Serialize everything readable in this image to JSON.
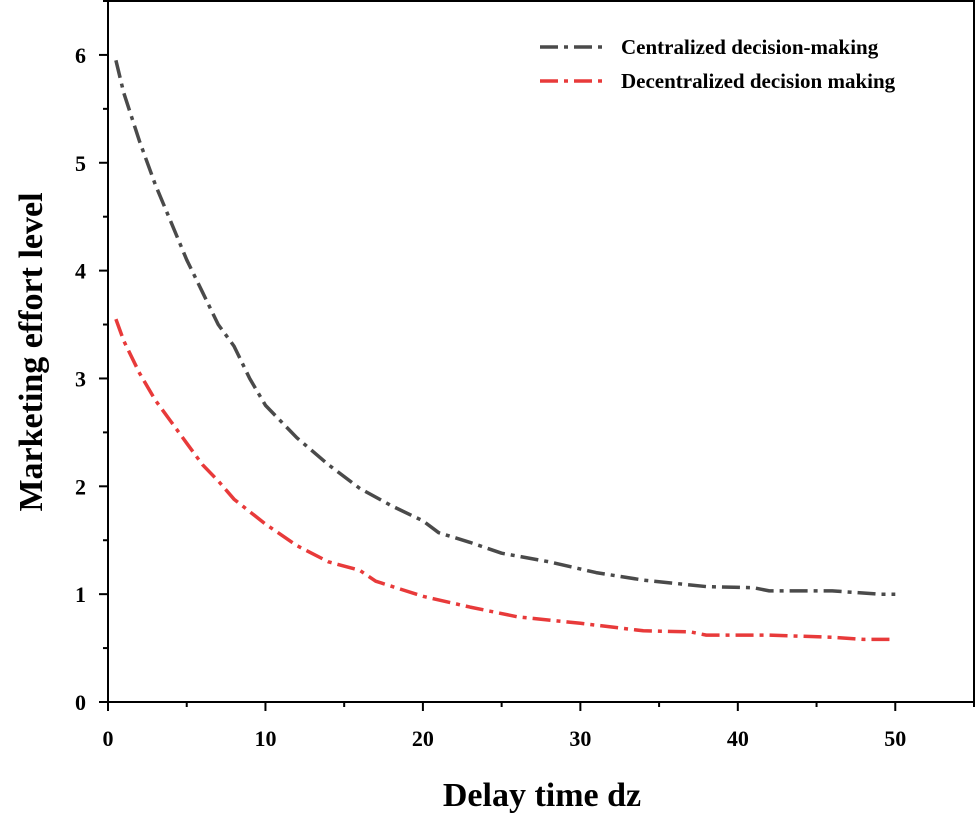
{
  "chart_data": {
    "type": "line",
    "xlabel": "Delay time dz",
    "ylabel": "Marketing effort level",
    "xlim": [
      0,
      55
    ],
    "ylim": [
      0,
      6.5
    ],
    "xticks": [
      0,
      10,
      20,
      30,
      40,
      50
    ],
    "xtick_labels": [
      "0",
      "10",
      "20",
      "30",
      "40",
      "50"
    ],
    "yticks": [
      0,
      1,
      2,
      3,
      4,
      5,
      6
    ],
    "ytick_labels": [
      "0",
      "1",
      "2",
      "3",
      "4",
      "5",
      "6"
    ],
    "grid": false,
    "legend": "top-right",
    "series": [
      {
        "name": "Centralized decision-making",
        "color": "#4a4a4a",
        "x": [
          0.5,
          1,
          2,
          3,
          4,
          5,
          6,
          7,
          8,
          9,
          10,
          12,
          14,
          16,
          18,
          20,
          21,
          23,
          25,
          28,
          31,
          34,
          38,
          41,
          42,
          46,
          49,
          50
        ],
        "y": [
          5.95,
          5.65,
          5.2,
          4.8,
          4.45,
          4.1,
          3.8,
          3.5,
          3.3,
          3.0,
          2.75,
          2.45,
          2.2,
          1.98,
          1.82,
          1.68,
          1.57,
          1.48,
          1.38,
          1.3,
          1.2,
          1.13,
          1.07,
          1.06,
          1.03,
          1.03,
          1.0,
          1.0
        ]
      },
      {
        "name": "Decentralized decision making",
        "color": "#e83a3a",
        "x": [
          0.5,
          1,
          2,
          3,
          4,
          5,
          6,
          7,
          8,
          10,
          12,
          14,
          16,
          17,
          20,
          23,
          26,
          30,
          34,
          37,
          38,
          42,
          46,
          48,
          50
        ],
        "y": [
          3.55,
          3.35,
          3.05,
          2.8,
          2.6,
          2.4,
          2.2,
          2.05,
          1.88,
          1.65,
          1.45,
          1.3,
          1.22,
          1.12,
          0.98,
          0.88,
          0.79,
          0.73,
          0.66,
          0.65,
          0.62,
          0.62,
          0.6,
          0.58,
          0.58
        ]
      }
    ]
  }
}
